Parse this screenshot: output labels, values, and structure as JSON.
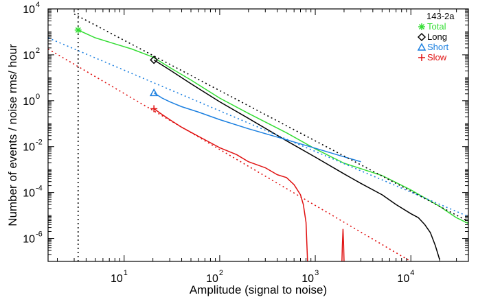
{
  "chart_data": {
    "type": "line",
    "title": "",
    "xlabel": "Amplitude (signal to noise)",
    "ylabel": "Number of events / noise rms/ hour",
    "x_scale": "log",
    "y_scale": "log",
    "xlim": [
      1.6,
      40000
    ],
    "ylim": [
      1e-07,
      10000
    ],
    "x_ticks": [
      {
        "base": "10",
        "exp": "1",
        "value": 10
      },
      {
        "base": "10",
        "exp": "2",
        "value": 100
      },
      {
        "base": "10",
        "exp": "3",
        "value": 1000
      },
      {
        "base": "10",
        "exp": "4",
        "value": 10000
      }
    ],
    "y_ticks": [
      {
        "base": "10",
        "exp": "4",
        "value": 10000
      },
      {
        "base": "10",
        "exp": "2",
        "value": 100
      },
      {
        "base": "10",
        "exp": "0",
        "value": 1
      },
      {
        "base": "10",
        "exp": "-2",
        "value": 0.01
      },
      {
        "base": "10",
        "exp": "-4",
        "value": 0.0001
      },
      {
        "base": "10",
        "exp": "-6",
        "value": 1e-06
      }
    ],
    "grid": false,
    "legend": {
      "title": "143-2a",
      "position": "top-right",
      "entries": [
        {
          "label": "Total",
          "marker": "asterisk",
          "color": "#33dd33"
        },
        {
          "label": "Long",
          "marker": "diamond",
          "color": "#000000"
        },
        {
          "label": "Short",
          "marker": "triangle",
          "color": "#1a7fe0"
        },
        {
          "label": "Slow",
          "marker": "plus",
          "color": "#e01010"
        }
      ]
    },
    "series": [
      {
        "name": "Total",
        "color": "#33dd33",
        "style": "solid",
        "marker_at": [
          3.3,
          1200
        ],
        "x": [
          3.3,
          5,
          8,
          12,
          20,
          30,
          50,
          100,
          200,
          500,
          1000,
          2000,
          3000,
          5000,
          10000,
          20000,
          30000,
          40000
        ],
        "y": [
          1200,
          550,
          300,
          180,
          80,
          28,
          8,
          1.3,
          0.28,
          0.04,
          0.008,
          0.0019,
          0.0011,
          0.00055,
          0.00013,
          2.5e-05,
          8e-06,
          4.5e-06
        ]
      },
      {
        "name": "Long",
        "color": "#000000",
        "style": "solid",
        "marker_at": [
          20.5,
          60
        ],
        "x": [
          20.5,
          30,
          50,
          100,
          200,
          500,
          1000,
          2000,
          3000,
          5000,
          7000,
          10000,
          12000,
          14000,
          16000,
          18000,
          20000
        ],
        "y": [
          60,
          22,
          5.5,
          0.9,
          0.17,
          0.018,
          0.0035,
          0.00065,
          0.00025,
          8e-05,
          3e-05,
          1.2e-05,
          8e-06,
          4e-06,
          1.8e-06,
          5e-07,
          1.2e-07
        ]
      },
      {
        "name": "Short",
        "color": "#1a7fe0",
        "style": "solid",
        "marker_at": [
          20.5,
          2.2
        ],
        "x": [
          20.5,
          25,
          30,
          40,
          60,
          100,
          200,
          500,
          1000,
          2000,
          3000
        ],
        "y": [
          2.2,
          1.3,
          0.9,
          0.55,
          0.32,
          0.15,
          0.06,
          0.02,
          0.0085,
          0.0036,
          0.0022
        ]
      },
      {
        "name": "Slow",
        "color": "#e01010",
        "style": "solid",
        "marker_at": [
          20.5,
          0.45
        ],
        "x": [
          20.5,
          25,
          30,
          40,
          60,
          100,
          150,
          200,
          300,
          400,
          500,
          600,
          700,
          750,
          800,
          830
        ],
        "y": [
          0.45,
          0.25,
          0.15,
          0.07,
          0.028,
          0.009,
          0.0045,
          0.0022,
          0.0012,
          0.0006,
          0.00045,
          0.00022,
          8e-05,
          3e-05,
          5e-06,
          1e-07
        ]
      },
      {
        "name": "Slow",
        "color": "#e01010",
        "style": "solid",
        "x": [
          1900,
          1920,
          1950,
          1980,
          2000
        ],
        "y": [
          1e-07,
          5e-07,
          2.5e-06,
          5e-07,
          1e-07
        ]
      },
      {
        "name": "Total",
        "color": "#000000",
        "style": "dotted",
        "x": [
          3.0,
          40000
        ],
        "y": [
          6000,
          5.5e-06
        ]
      },
      {
        "name": "Total",
        "color": "#000000",
        "style": "dotted",
        "x": [
          3.3,
          3.3
        ],
        "y": [
          1e-07,
          10000
        ]
      },
      {
        "name": "Short",
        "color": "#1a7fe0",
        "style": "dotted",
        "x": [
          1.6,
          40000
        ],
        "y": [
          550,
          9e-06
        ]
      },
      {
        "name": "Slow",
        "color": "#e01010",
        "style": "dotted",
        "x": [
          1.6,
          10000
        ],
        "y": [
          180,
          1e-07
        ]
      }
    ]
  }
}
